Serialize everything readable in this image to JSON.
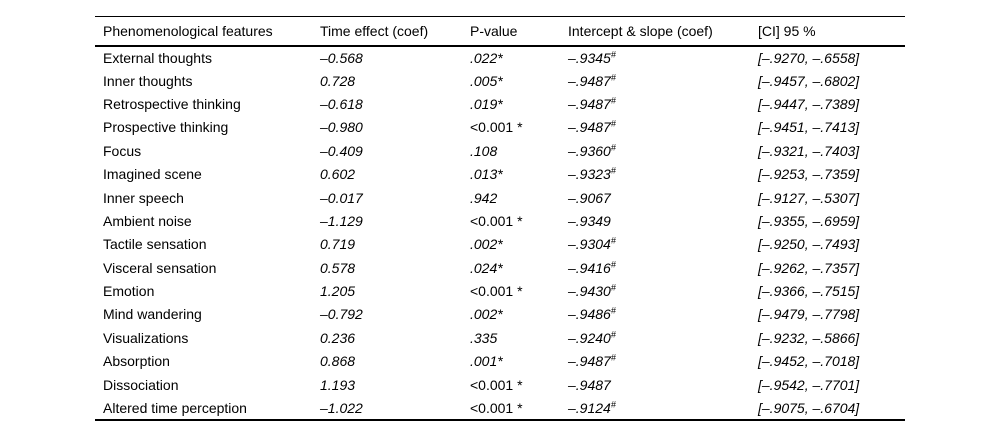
{
  "colors": {
    "text": "#000000",
    "background": "#ffffff",
    "rule": "#000000"
  },
  "chart_data": {
    "type": "table",
    "columns": [
      "Phenomenological features",
      "Time effect (coef)",
      "P-value",
      "Intercept & slope (coef)",
      "[CI] 95 %"
    ],
    "rows": [
      {
        "feature": "External thoughts",
        "time_effect": "–0.568",
        "p_value": ".022*",
        "p_upright": false,
        "intercept": "–.9345",
        "intercept_sup": "#",
        "ci": "[–.9270, –.6558]"
      },
      {
        "feature": "Inner thoughts",
        "time_effect": "0.728",
        "p_value": ".005*",
        "p_upright": false,
        "intercept": "–.9487",
        "intercept_sup": "#",
        "ci": "[–.9457, –.6802]"
      },
      {
        "feature": "Retrospective thinking",
        "time_effect": "–0.618",
        "p_value": ".019*",
        "p_upright": false,
        "intercept": "–.9487",
        "intercept_sup": "#",
        "ci": "[–.9447, –.7389]"
      },
      {
        "feature": "Prospective thinking",
        "time_effect": "–0.980",
        "p_value": "<0.001 *",
        "p_upright": true,
        "intercept": "–.9487",
        "intercept_sup": "#",
        "ci": "[–.9451, –.7413]"
      },
      {
        "feature": "Focus",
        "time_effect": "–0.409",
        "p_value": ".108",
        "p_upright": false,
        "intercept": "–.9360",
        "intercept_sup": "#",
        "ci": "[–.9321, –.7403]"
      },
      {
        "feature": "Imagined scene",
        "time_effect": "0.602",
        "p_value": ".013*",
        "p_upright": false,
        "intercept": "–.9323",
        "intercept_sup": "#",
        "ci": "[–.9253, –.7359]"
      },
      {
        "feature": "Inner speech",
        "time_effect": "–0.017",
        "p_value": ".942",
        "p_upright": false,
        "intercept": "–.9067",
        "intercept_sup": "",
        "ci": "[–.9127, –.5307]"
      },
      {
        "feature": "Ambient noise",
        "time_effect": "–1.129",
        "p_value": "<0.001 *",
        "p_upright": true,
        "intercept": "–.9349",
        "intercept_sup": "",
        "ci": "[–.9355, –.6959]"
      },
      {
        "feature": "Tactile sensation",
        "time_effect": "0.719",
        "p_value": ".002*",
        "p_upright": false,
        "intercept": "–.9304",
        "intercept_sup": "#",
        "ci": "[–.9250, –.7493]"
      },
      {
        "feature": "Visceral sensation",
        "time_effect": "0.578",
        "p_value": ".024*",
        "p_upright": false,
        "intercept": "–.9416",
        "intercept_sup": "#",
        "ci": "[–.9262, –.7357]"
      },
      {
        "feature": "Emotion",
        "time_effect": "1.205",
        "p_value": "<0.001 *",
        "p_upright": true,
        "intercept": "–.9430",
        "intercept_sup": "#",
        "ci": "[–.9366, –.7515]"
      },
      {
        "feature": "Mind wandering",
        "time_effect": "–0.792",
        "p_value": ".002*",
        "p_upright": false,
        "intercept": "–.9486",
        "intercept_sup": "#",
        "ci": "[–.9479, –.7798]"
      },
      {
        "feature": "Visualizations",
        "time_effect": "0.236",
        "p_value": ".335",
        "p_upright": false,
        "intercept": "–.9240",
        "intercept_sup": "#",
        "ci": "[–.9232, –.5866]"
      },
      {
        "feature": "Absorption",
        "time_effect": "0.868",
        "p_value": ".001*",
        "p_upright": false,
        "intercept": "–.9487",
        "intercept_sup": "#",
        "ci": "[–.9452, –.7018]"
      },
      {
        "feature": "Dissociation",
        "time_effect": "1.193",
        "p_value": "<0.001 *",
        "p_upright": true,
        "intercept": "–.9487",
        "intercept_sup": "",
        "ci": "[–.9542, –.7701]"
      },
      {
        "feature": "Altered time perception",
        "time_effect": "–1.022",
        "p_value": "<0.001 *",
        "p_upright": true,
        "intercept": "–.9124",
        "intercept_sup": "#",
        "ci": "[–.9075, –.6704]"
      }
    ]
  }
}
